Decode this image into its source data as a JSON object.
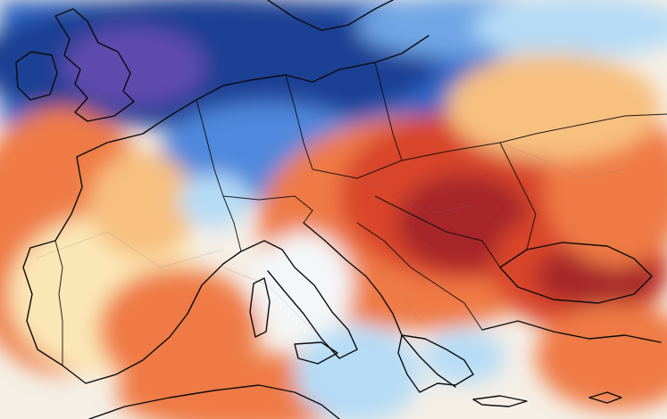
{
  "map": {
    "kind": "temperature-anomaly-map",
    "region": "Europe",
    "labels_visible": false,
    "colors": {
      "deep_cold": "#1b3f94",
      "cold": "#2f67c7",
      "cool": "#6fa6e6",
      "light_cool": "#b6dcf6",
      "near_zero": "#f4f7f8",
      "light_warm": "#fbe7b6",
      "warm": "#f7c07f",
      "hot": "#ef7a45",
      "very_hot": "#d9442a",
      "extreme_hot": "#a6282a",
      "purple_cold": "#5f4cae",
      "border_line": "#0b0b0b",
      "admin_line": "#7b7b7b"
    },
    "features": [
      "cold-anomaly-northwest",
      "warm-anomaly-iberia",
      "warm-anomaly-balkans",
      "extreme-warm-romania",
      "extreme-warm-black-sea",
      "cool-anomaly-italy",
      "cool-anomaly-mediterranean"
    ]
  }
}
